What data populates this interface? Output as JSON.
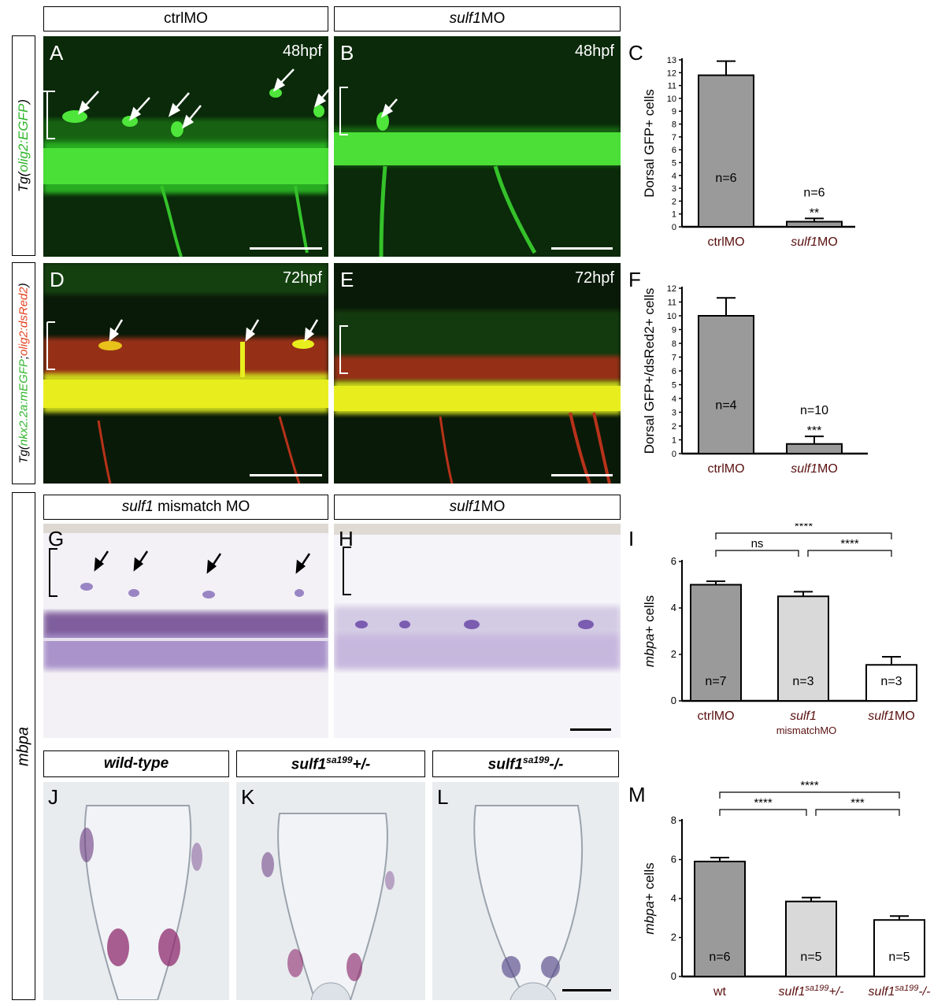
{
  "headers": {
    "ctrl": "ctrlMO",
    "sulf1_italic": "sulf1",
    "sulf1_mo_suffix": "MO",
    "mismatch_italic": "sulf1",
    "mismatch_suffix": " mismatch MO",
    "sulf1mo2_italic": "sulf1",
    "sulf1mo2_suffix": "MO",
    "wt": "wild-type",
    "het_base": "sulf1",
    "het_sup": "sa199",
    "het_suffix": "+/-",
    "hom_base": "sulf1",
    "hom_sup": "sa199",
    "hom_suffix": "-/-"
  },
  "side_labels": {
    "olig2": {
      "prefix": "Tg(",
      "green": "olig2:EGFP",
      "suffix": ")"
    },
    "nkx": {
      "prefix": "Tg(",
      "green": "nkx2.2a:mEGFP",
      "sep": ";",
      "red": "olig2:dsRed2",
      "suffix": ")"
    },
    "mbpa": "mbpa"
  },
  "panels": {
    "A": {
      "letter": "A",
      "stage": "48hpf"
    },
    "B": {
      "letter": "B",
      "stage": "48hpf"
    },
    "D": {
      "letter": "D",
      "stage": "72hpf"
    },
    "E": {
      "letter": "E",
      "stage": "72hpf"
    },
    "G": {
      "letter": "G"
    },
    "H": {
      "letter": "H"
    },
    "J": {
      "letter": "J"
    },
    "K": {
      "letter": "K"
    },
    "L": {
      "letter": "L"
    }
  },
  "colors": {
    "fluor_bg": "#0a2a0a",
    "gfp": "#35e02a",
    "red": "#e2401c",
    "ish_bg": "#f3f1f6",
    "purple": "#6a4b9c",
    "bar_dark": "#9a9a9a",
    "bar_light": "#d9d9d9"
  },
  "chart_data": [
    {
      "id": "C",
      "letter": "C",
      "type": "bar",
      "ylabel": "Dorsal GFP+ cells",
      "ylim": [
        0,
        13
      ],
      "yticks": [
        0,
        1,
        2,
        3,
        4,
        5,
        6,
        7,
        8,
        9,
        10,
        11,
        12,
        13
      ],
      "categories": [
        "ctrlMO",
        "sulf1MO"
      ],
      "cat_italic": [
        "",
        "sulf1"
      ],
      "cat_rest": [
        "ctrlMO",
        "MO"
      ],
      "values": [
        11.8,
        0.4
      ],
      "errors": [
        1.1,
        0.25
      ],
      "fills": [
        "#9a9a9a",
        "#9a9a9a"
      ],
      "n_labels": [
        "n=6",
        "n=6"
      ],
      "sig": [
        "",
        "**"
      ]
    },
    {
      "id": "F",
      "letter": "F",
      "type": "bar",
      "ylabel": "Dorsal GFP+/dsRed2+ cells",
      "ylim": [
        0,
        12
      ],
      "yticks": [
        0,
        1,
        2,
        3,
        4,
        5,
        6,
        7,
        8,
        9,
        10,
        11,
        12
      ],
      "categories": [
        "ctrlMO",
        "sulf1MO"
      ],
      "cat_italic": [
        "",
        "sulf1"
      ],
      "cat_rest": [
        "ctrlMO",
        "MO"
      ],
      "values": [
        10.0,
        0.7
      ],
      "errors": [
        1.3,
        0.55
      ],
      "fills": [
        "#9a9a9a",
        "#9a9a9a"
      ],
      "n_labels": [
        "n=4",
        "n=10"
      ],
      "sig": [
        "",
        "***"
      ]
    },
    {
      "id": "I",
      "letter": "I",
      "type": "bar",
      "ylabel_italic": "mbpa",
      "ylabel_rest": "+ cells",
      "ylim": [
        0,
        6
      ],
      "yticks": [
        0,
        2,
        4,
        6
      ],
      "categories": [
        "ctrlMO",
        "sulf1 mismatchMO",
        "sulf1MO"
      ],
      "cat_italic": [
        "",
        "sulf1",
        "sulf1"
      ],
      "cat_rest": [
        "ctrlMO",
        "",
        "MO"
      ],
      "cat_sub": [
        "",
        "mismatchMO",
        ""
      ],
      "values": [
        5.0,
        4.5,
        1.55
      ],
      "errors": [
        0.15,
        0.2,
        0.35
      ],
      "fills": [
        "#9a9a9a",
        "#d9d9d9",
        "#ffffff"
      ],
      "n_labels": [
        "n=7",
        "n=3",
        "n=3"
      ],
      "brackets": [
        {
          "from": 0,
          "to": 1,
          "label": "ns",
          "level": 1
        },
        {
          "from": 1,
          "to": 2,
          "label": "****",
          "level": 1
        },
        {
          "from": 0,
          "to": 2,
          "label": "****",
          "level": 2
        }
      ]
    },
    {
      "id": "M",
      "letter": "M",
      "type": "bar",
      "ylabel_italic": "mbpa",
      "ylabel_rest": "+ cells",
      "ylim": [
        0,
        8
      ],
      "yticks": [
        0,
        2,
        4,
        6,
        8
      ],
      "categories": [
        "wt",
        "sulf1sa199+/-",
        "sulf1sa199-/-"
      ],
      "cat_italic": [
        "",
        "sulf1",
        "sulf1"
      ],
      "cat_sup": [
        "",
        "sa199",
        "sa199"
      ],
      "cat_rest": [
        "wt",
        "+/-",
        "-/-"
      ],
      "values": [
        5.9,
        3.85,
        2.9
      ],
      "errors": [
        0.2,
        0.2,
        0.2
      ],
      "fills": [
        "#9a9a9a",
        "#d9d9d9",
        "#ffffff"
      ],
      "n_labels": [
        "n=6",
        "n=5",
        "n=5"
      ],
      "brackets": [
        {
          "from": 0,
          "to": 1,
          "label": "****",
          "level": 1
        },
        {
          "from": 1,
          "to": 2,
          "label": "***",
          "level": 1
        },
        {
          "from": 0,
          "to": 2,
          "label": "****",
          "level": 2
        }
      ]
    }
  ]
}
